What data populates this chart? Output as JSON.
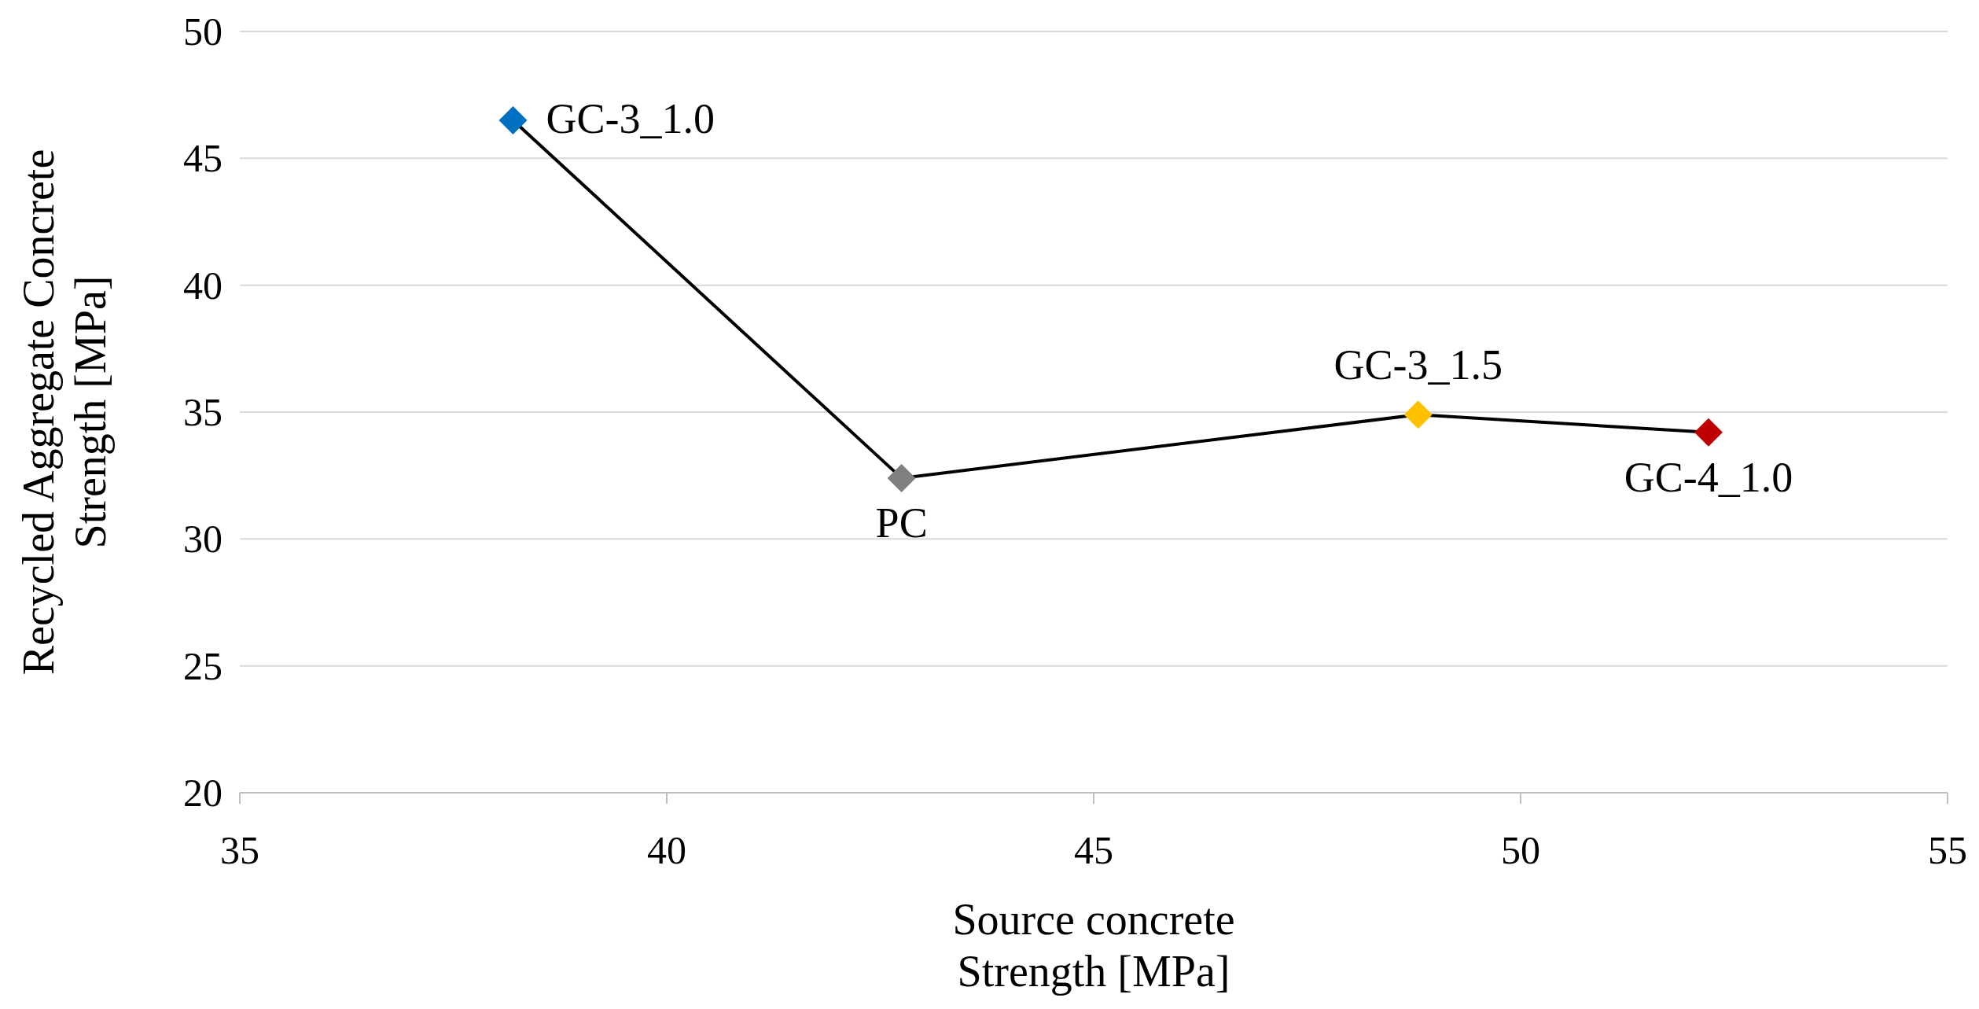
{
  "chart_data": {
    "type": "line",
    "xlabel": "Source concrete Strength [MPa]",
    "ylabel": "Recycled Aggregate Concrete Strength [MPa]",
    "x": [
      38.2,
      42.75,
      48.8,
      52.2
    ],
    "series": [
      {
        "color": "#000000",
        "colors": [
          "#0070c0",
          "#808080",
          "#ffc000",
          "#c00000"
        ],
        "values": [
          46.5,
          32.4,
          34.9,
          34.2
        ]
      }
    ],
    "xlim": [
      35,
      55
    ],
    "xticks": [
      35,
      40,
      45,
      50,
      55
    ],
    "ylim": [
      20,
      50
    ],
    "yticks": [
      20,
      25,
      30,
      35,
      40,
      45,
      50
    ],
    "grid": "y",
    "marker": "diamond",
    "line_style": "solid",
    "annotations": [
      {
        "text": "GC-3_1.0",
        "x": 38.2,
        "y": 46.5
      },
      {
        "text": "PC",
        "x": 42.75,
        "y": 32.4
      },
      {
        "text": "GC-3_1.5",
        "x": 48.8,
        "y": 34.9
      },
      {
        "text": "GC-4_1.0",
        "x": 52.2,
        "y": 34.2
      }
    ]
  }
}
